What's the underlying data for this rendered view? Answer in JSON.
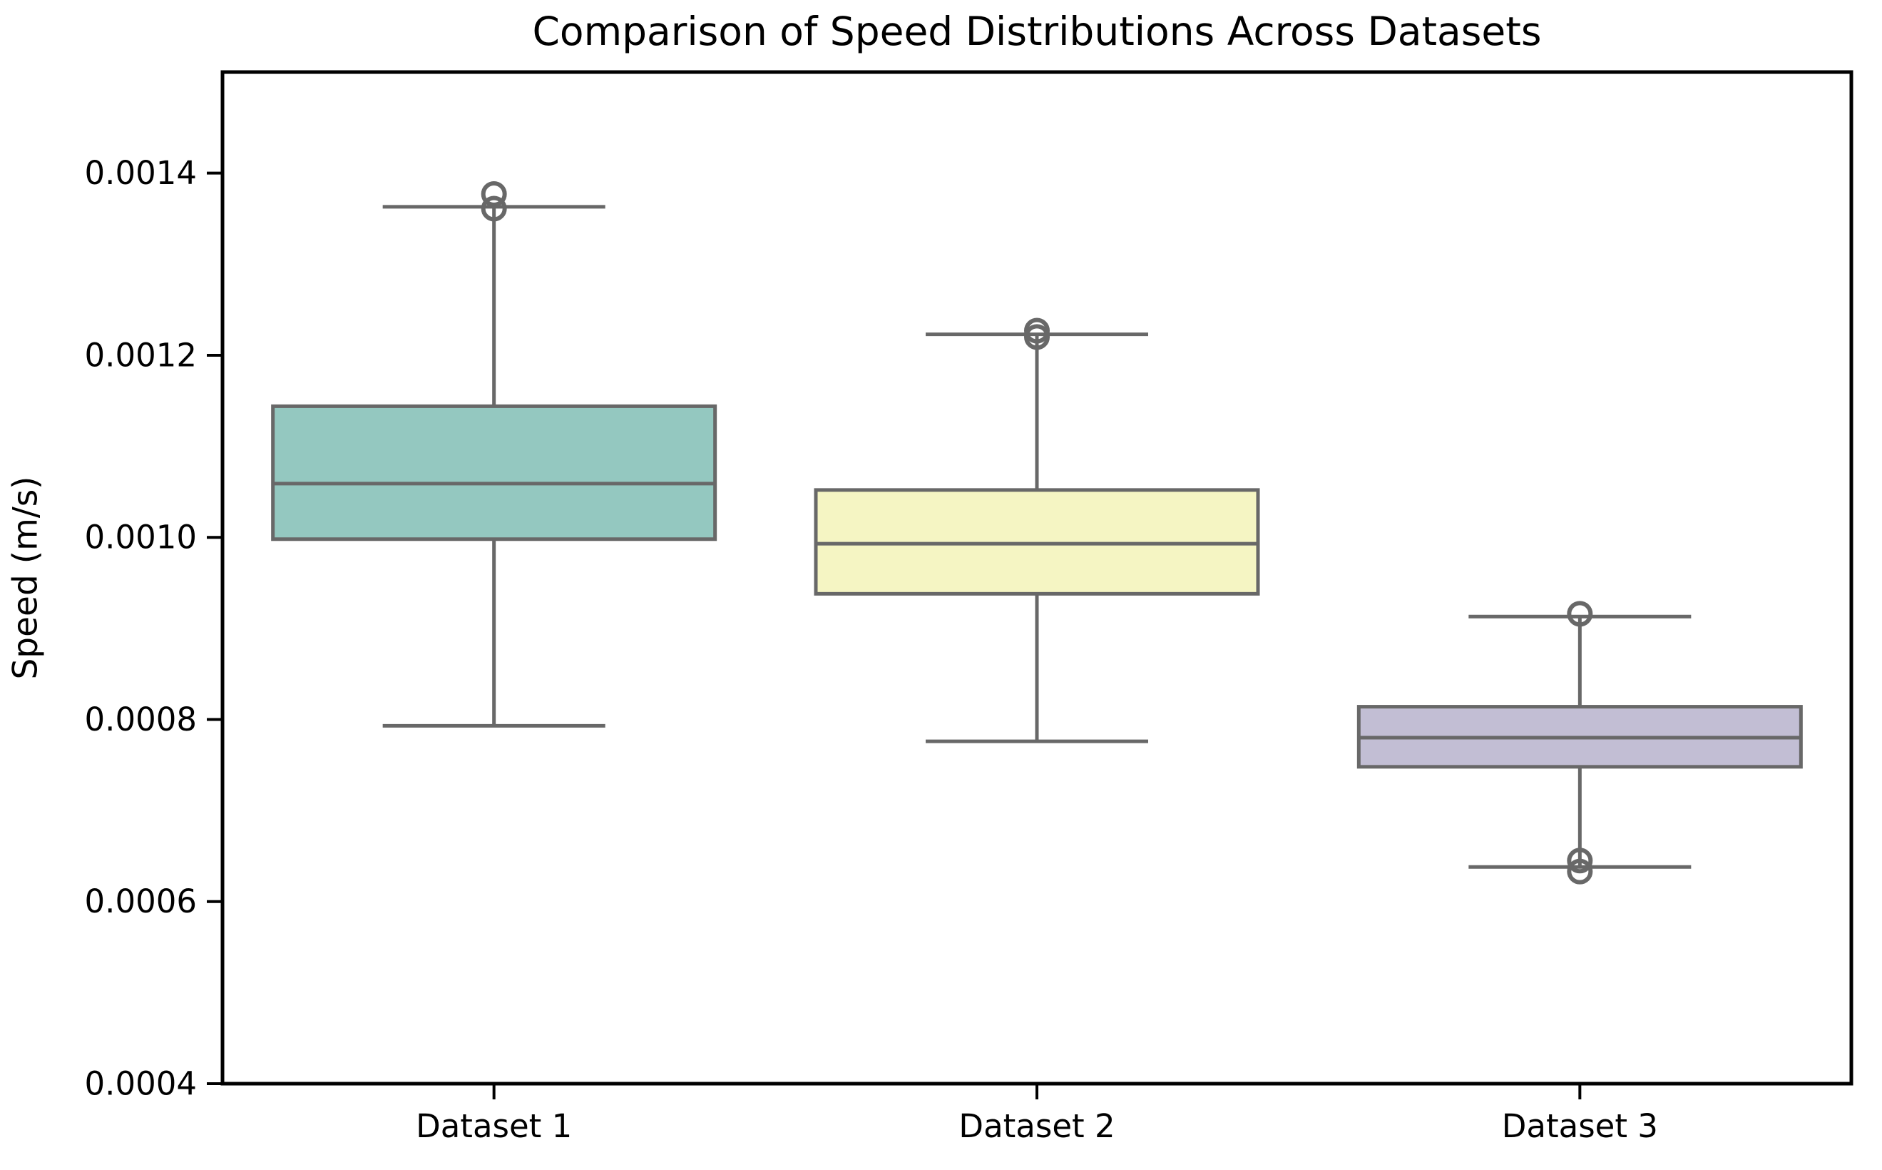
{
  "chart_data": {
    "type": "box",
    "title": "Comparison of Speed Distributions Across Datasets",
    "ylabel": "Speed (m/s)",
    "categories": [
      "Dataset 1",
      "Dataset 2",
      "Dataset 3"
    ],
    "ylim": [
      0.0004,
      0.001511
    ],
    "yticks": [
      0.0004,
      0.0006,
      0.0008,
      0.001,
      0.0012,
      0.0014
    ],
    "ytick_labels": [
      "0.0004",
      "0.0006",
      "0.0008",
      "0.0010",
      "0.0012",
      "0.0014"
    ],
    "grid": false,
    "legend": "none",
    "box_colors": [
      "#94c8c0",
      "#f5f5c3",
      "#c2bed4"
    ],
    "line_color": "#686868",
    "spine_color": "#000000",
    "text_color": "#000000",
    "background_color": "#ffffff",
    "series": [
      {
        "name": "Dataset 1",
        "whisker_low": 0.000793,
        "q1": 0.000998,
        "median": 0.001059,
        "q3": 0.001144,
        "whisker_high": 0.001363,
        "outliers": [
          0.001377,
          0.001361
        ]
      },
      {
        "name": "Dataset 2",
        "whisker_low": 0.000776,
        "q1": 0.000938,
        "median": 0.000993,
        "q3": 0.001052,
        "whisker_high": 0.001223,
        "outliers": [
          0.001227,
          0.00122
        ]
      },
      {
        "name": "Dataset 3",
        "whisker_low": 0.000638,
        "q1": 0.000748,
        "median": 0.00078,
        "q3": 0.000814,
        "whisker_high": 0.000913,
        "outliers": [
          0.000916,
          0.000645,
          0.000633
        ]
      }
    ]
  }
}
